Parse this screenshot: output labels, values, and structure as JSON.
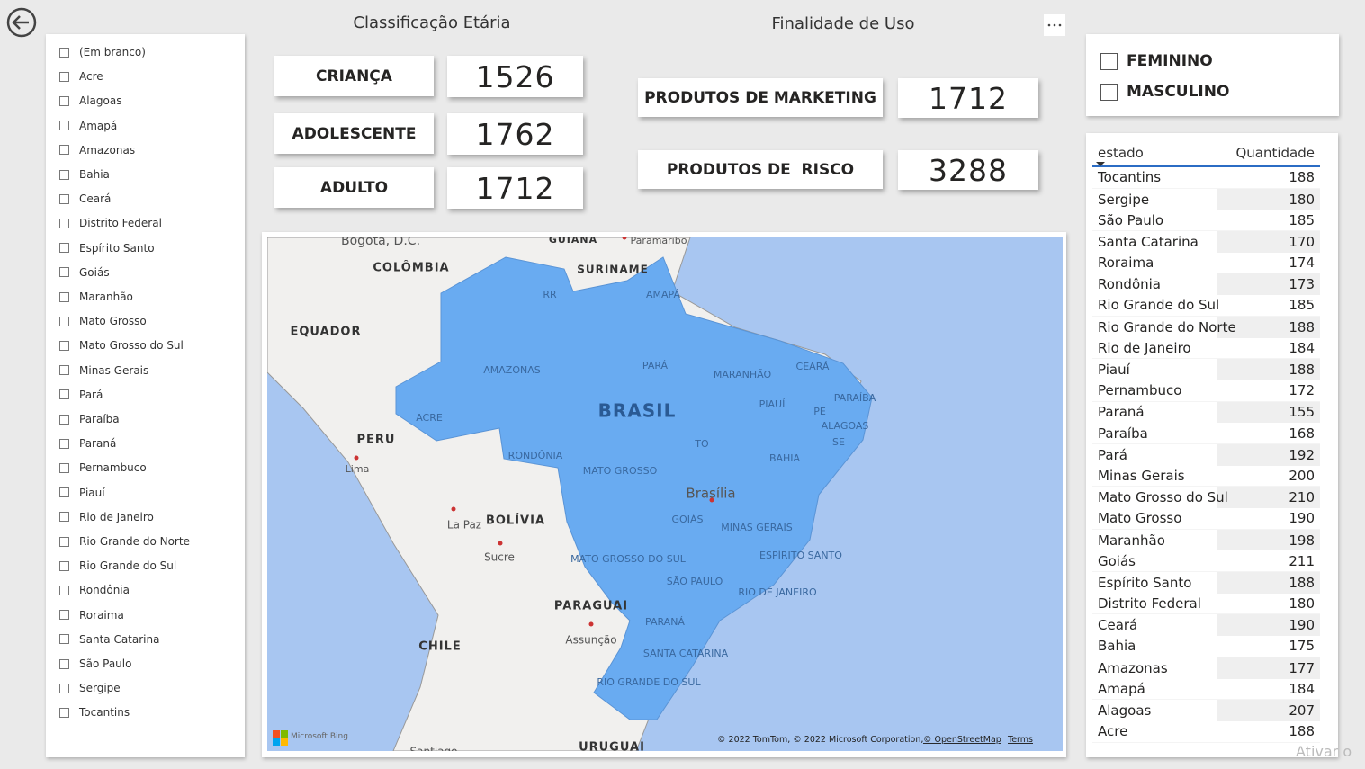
{
  "state_slicer": {
    "items": [
      "(Em branco)",
      "Acre",
      "Alagoas",
      "Amapá",
      "Amazonas",
      "Bahia",
      "Ceará",
      "Distrito Federal",
      "Espírito Santo",
      "Goiás",
      "Maranhão",
      "Mato Grosso",
      "Mato Grosso do Sul",
      "Minas Gerais",
      "Pará",
      "Paraíba",
      "Paraná",
      "Pernambuco",
      "Piauí",
      "Rio de Janeiro",
      "Rio Grande do Norte",
      "Rio Grande do Sul",
      "Rondônia",
      "Roraima",
      "Santa Catarina",
      "São Paulo",
      "Sergipe",
      "Tocantins"
    ]
  },
  "age": {
    "title": "Classificação Etária",
    "cards": [
      {
        "label": "CRIANÇA",
        "value": 1526
      },
      {
        "label": "ADOLESCENTE",
        "value": 1762
      },
      {
        "label": "ADULTO",
        "value": 1712
      }
    ]
  },
  "usage": {
    "title": "Finalidade de Uso",
    "cards": [
      {
        "label": "PRODUTOS DE MARKETING",
        "value": 1712
      },
      {
        "label": "PRODUTOS DE  RISCO",
        "value": 3288
      }
    ]
  },
  "gender_slicer": {
    "items": [
      "FEMININO",
      "MASCULINO"
    ]
  },
  "table": {
    "columns": [
      "estado",
      "Quantidade"
    ],
    "rows": [
      [
        "Tocantins",
        188
      ],
      [
        "Sergipe",
        180
      ],
      [
        "São Paulo",
        185
      ],
      [
        "Santa Catarina",
        170
      ],
      [
        "Roraima",
        174
      ],
      [
        "Rondônia",
        173
      ],
      [
        "Rio Grande do Sul",
        185
      ],
      [
        "Rio Grande do Norte",
        188
      ],
      [
        "Rio de Janeiro",
        184
      ],
      [
        "Piauí",
        188
      ],
      [
        "Pernambuco",
        172
      ],
      [
        "Paraná",
        155
      ],
      [
        "Paraíba",
        168
      ],
      [
        "Pará",
        192
      ],
      [
        "Minas Gerais",
        200
      ],
      [
        "Mato Grosso do Sul",
        210
      ],
      [
        "Mato Grosso",
        190
      ],
      [
        "Maranhão",
        198
      ],
      [
        "Goiás",
        211
      ],
      [
        "Espírito Santo",
        188
      ],
      [
        "Distrito Federal",
        180
      ],
      [
        "Ceará",
        190
      ],
      [
        "Bahia",
        175
      ],
      [
        "Amazonas",
        177
      ],
      [
        "Amapá",
        184
      ],
      [
        "Alagoas",
        207
      ],
      [
        "Acre",
        188
      ]
    ]
  },
  "map": {
    "labels": [
      "Bogotá, D.C.",
      "GUIANA",
      "Paramaribo",
      "COLÔMBIA",
      "SURINAME",
      "RR",
      "AMAPÁ",
      "EQUADOR",
      "AMAZONAS",
      "PARÁ",
      "MARANHÃO",
      "CEARÁ",
      "PARAÍBA",
      "BRASIL",
      "PIAUÍ",
      "PE",
      "ALAGOAS",
      "SE",
      "ACRE",
      "PERU",
      "Lima",
      "RONDÔNIA",
      "MATO GROSSO",
      "TO",
      "BAHIA",
      "Brasília",
      "GOIÁS",
      "MINAS GERAIS",
      "La Paz",
      "BOLÍVIA",
      "Sucre",
      "MATO GROSSO DO SUL",
      "ESPÍRITO SANTO",
      "SÃO PAULO",
      "RIO DE JANEIRO",
      "PARAGUAI",
      "PARANÁ",
      "Assunção",
      "CHILE",
      "SANTA CATARINA",
      "RIO GRANDE DO SUL",
      "Santiago",
      "URUGUAI"
    ],
    "logo": "Microsoft Bing",
    "attribution": "© 2022 TomTom, © 2022 Microsoft Corporation,",
    "osm": "© OpenStreetMap",
    "terms": "Terms"
  },
  "watermark": "Ativar o"
}
